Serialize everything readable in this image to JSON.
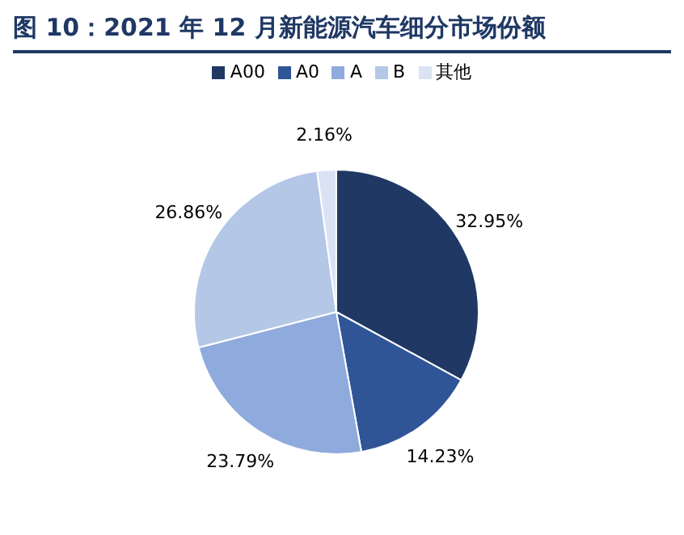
{
  "chart_data": {
    "type": "pie",
    "title": "图 10：2021 年 12 月新能源汽车细分市场份额",
    "categories": [
      "A00",
      "A0",
      "A",
      "B",
      "其他"
    ],
    "values": [
      32.95,
      14.23,
      23.79,
      26.86,
      2.16
    ],
    "colors": [
      "#1f3864",
      "#2f5597",
      "#8faadc",
      "#b4c7e7",
      "#dae3f3"
    ],
    "value_labels": [
      "32.95%",
      "14.23%",
      "23.79%",
      "26.86%",
      "2.16%"
    ],
    "legend": "top"
  }
}
